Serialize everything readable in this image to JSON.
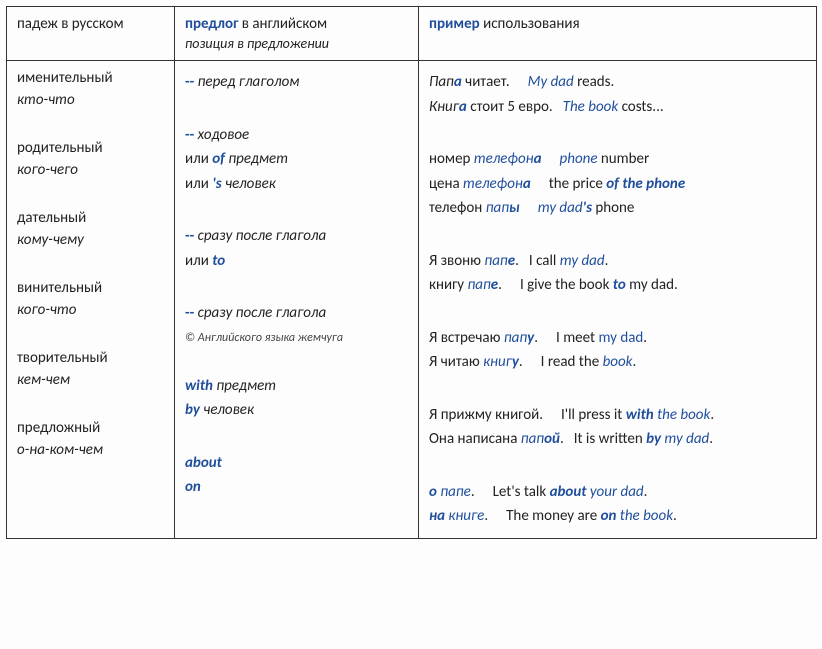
{
  "colors": {
    "accent": "#1f4e9c",
    "text": "#222",
    "border": "#333",
    "bg": "#fdfdfd"
  },
  "header": {
    "col1": "падеж в русском",
    "col2_bold": "предлог",
    "col2_rest": " в английском",
    "col2_sub": "позиция в предложении",
    "col3_bold": "пример",
    "col3_rest": " использования"
  },
  "rows": [
    {
      "case": "именительный",
      "question": "кто-что",
      "prep": [
        {
          "dash": "--",
          "ital": "перед глаголом"
        }
      ],
      "ex": [
        [
          {
            "t": "Пап",
            "c": "ital"
          },
          {
            "t": "а",
            "c": "bolditalblue"
          },
          {
            "t": " читает.",
            "c": ""
          },
          {
            "gap": 2
          },
          {
            "t": "My dad",
            "c": "italblue"
          },
          {
            "t": " reads.",
            "c": ""
          }
        ],
        [
          {
            "t": "Книг",
            "c": "ital"
          },
          {
            "t": "а",
            "c": "bolditalblue"
          },
          {
            "t": " стоит 5 евро.",
            "c": ""
          },
          {
            "gap": 1
          },
          {
            "t": "The book",
            "c": "italblue"
          },
          {
            "t": " costs...",
            "c": ""
          }
        ]
      ]
    },
    {
      "case": "родительный",
      "question": "кого-чего",
      "prep": [
        {
          "dash": "--",
          "ital": "ходовое"
        },
        {
          "plain": "или ",
          "bold": "of",
          "ital2": " предмет"
        },
        {
          "plain": "или ",
          "bold": "'s",
          "ital2": " человек"
        }
      ],
      "ex": [
        [
          {
            "t": "номер ",
            "c": ""
          },
          {
            "t": "телефон",
            "c": "italblue"
          },
          {
            "t": "а",
            "c": "bolditalblue"
          },
          {
            "gap": 2
          },
          {
            "t": "phone",
            "c": "italblue"
          },
          {
            "t": " number",
            "c": ""
          }
        ],
        [
          {
            "t": "цена ",
            "c": ""
          },
          {
            "t": "телефон",
            "c": "italblue"
          },
          {
            "t": "а",
            "c": "bolditalblue"
          },
          {
            "gap": 2
          },
          {
            "t": "the price ",
            "c": ""
          },
          {
            "t": "of the phone",
            "c": "bolditalblue"
          }
        ],
        [
          {
            "t": "телефон ",
            "c": ""
          },
          {
            "t": "пап",
            "c": "italblue"
          },
          {
            "t": "ы",
            "c": "bolditalblue"
          },
          {
            "gap": 2
          },
          {
            "t": "my dad",
            "c": "italblue"
          },
          {
            "t": "'s",
            "c": "bolditalblue"
          },
          {
            "t": " phone",
            "c": ""
          }
        ]
      ]
    },
    {
      "case": "дательный",
      "question": "кому-чему",
      "prep": [
        {
          "dash": "--",
          "ital": "сразу после глагола"
        },
        {
          "plain": "или ",
          "bold": "to"
        }
      ],
      "ex": [
        [
          {
            "t": "Я звоню ",
            "c": ""
          },
          {
            "t": "пап",
            "c": "italblue"
          },
          {
            "t": "е",
            "c": "bolditalblue"
          },
          {
            "t": ".",
            "c": ""
          },
          {
            "gap": 1
          },
          {
            "t": "I call ",
            "c": ""
          },
          {
            "t": "my dad",
            "c": "italblue"
          },
          {
            "t": ".",
            "c": ""
          }
        ],
        [
          {
            "t": "книгу ",
            "c": ""
          },
          {
            "t": "пап",
            "c": "italblue"
          },
          {
            "t": "е",
            "c": "bolditalblue"
          },
          {
            "t": ".",
            "c": ""
          },
          {
            "gap": 2
          },
          {
            "t": "I give the book ",
            "c": ""
          },
          {
            "t": "to",
            "c": "bolditalblue"
          },
          {
            "t": " my dad.",
            "c": ""
          }
        ]
      ]
    },
    {
      "case": "винительный",
      "question": "кого-что",
      "prep": [
        {
          "dash": "--",
          "ital": "сразу после глагола"
        }
      ],
      "copyright": "© Английского языка жемчуга",
      "ex": [
        [
          {
            "t": "Я встречаю ",
            "c": ""
          },
          {
            "t": "пап",
            "c": "italblue"
          },
          {
            "t": "у",
            "c": "bolditalblue"
          },
          {
            "t": ".",
            "c": ""
          },
          {
            "gap": 2
          },
          {
            "t": "I meet ",
            "c": ""
          },
          {
            "t": "my dad",
            "c": "blue"
          },
          {
            "t": ".",
            "c": ""
          }
        ],
        [
          {
            "t": "Я читаю ",
            "c": ""
          },
          {
            "t": "книг",
            "c": "italblue"
          },
          {
            "t": "у",
            "c": "bolditalblue"
          },
          {
            "t": ".",
            "c": ""
          },
          {
            "gap": 2
          },
          {
            "t": "I read the ",
            "c": ""
          },
          {
            "t": "book",
            "c": "italblue"
          },
          {
            "t": ".",
            "c": ""
          }
        ]
      ]
    },
    {
      "case": "творительный",
      "question": "кем-чем",
      "prep": [
        {
          "bold": "with",
          "ital2": " предмет"
        },
        {
          "bold": "by",
          "ital2": " человек"
        }
      ],
      "ex": [
        [
          {
            "t": "Я прижму книгой.",
            "c": ""
          },
          {
            "gap": 2
          },
          {
            "t": "I'll press it ",
            "c": ""
          },
          {
            "t": "with",
            "c": "bolditalblue"
          },
          {
            "t": " the book",
            "c": "italblue"
          },
          {
            "t": ".",
            "c": ""
          }
        ],
        [
          {
            "t": "Она написана ",
            "c": ""
          },
          {
            "t": "пап",
            "c": "italblue"
          },
          {
            "t": "ой",
            "c": "bolditalblue"
          },
          {
            "t": ".",
            "c": ""
          },
          {
            "gap": 1
          },
          {
            "t": "It is written ",
            "c": ""
          },
          {
            "t": "by",
            "c": "bolditalblue"
          },
          {
            "t": " my dad",
            "c": "italblue"
          },
          {
            "t": ".",
            "c": ""
          }
        ]
      ]
    },
    {
      "case": "предложный",
      "question": "о-на-ком-чем",
      "prep": [
        {
          "bold": "about"
        },
        {
          "bold": "on"
        }
      ],
      "ex": [
        [
          {
            "t": "о",
            "c": "bolditalblue"
          },
          {
            "t": " папе",
            "c": "italblue"
          },
          {
            "t": ".",
            "c": ""
          },
          {
            "gap": 2
          },
          {
            "t": "Let's talk ",
            "c": ""
          },
          {
            "t": "about",
            "c": "bolditalblue"
          },
          {
            "t": " your dad",
            "c": "italblue"
          },
          {
            "t": ".",
            "c": ""
          }
        ],
        [
          {
            "t": "на",
            "c": "bolditalblue"
          },
          {
            "t": " книге",
            "c": "italblue"
          },
          {
            "t": ".",
            "c": ""
          },
          {
            "gap": 2
          },
          {
            "t": "The money are ",
            "c": ""
          },
          {
            "t": "on",
            "c": "bolditalblue"
          },
          {
            "t": " the book",
            "c": "italblue"
          },
          {
            "t": ".",
            "c": ""
          }
        ]
      ]
    }
  ]
}
